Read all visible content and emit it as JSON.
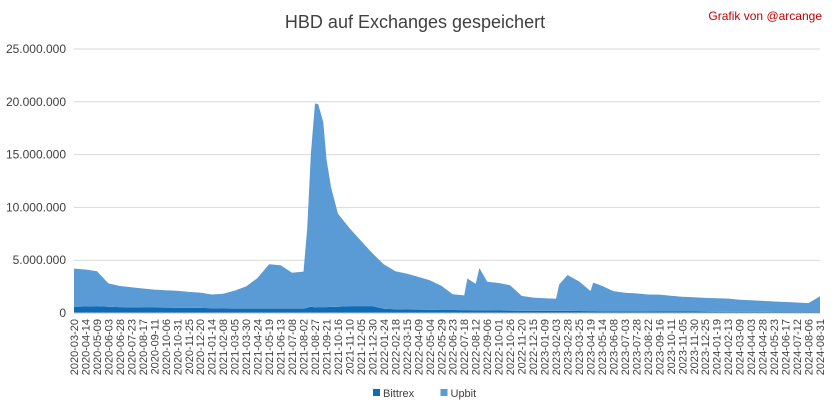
{
  "credit": "Grafik von @arcange",
  "chart_data": {
    "type": "area",
    "stacked": true,
    "title": "HBD auf Exchanges gespeichert",
    "xlabel": "",
    "ylabel": "",
    "ylim": [
      0,
      25000000
    ],
    "yticks": [
      0,
      5000000,
      10000000,
      15000000,
      20000000,
      25000000
    ],
    "ytick_labels": [
      "0",
      "5.000.000",
      "10.000.000",
      "15.000.000",
      "20.000.000",
      "25.000.000"
    ],
    "grid": "horizontal",
    "legend_position": "bottom",
    "x_tick_labels": [
      "2020-03-20",
      "2020-04-14",
      "2020-05-09",
      "2020-06-03",
      "2020-06-28",
      "2020-07-23",
      "2020-08-17",
      "2020-09-11",
      "2020-10-06",
      "2020-10-31",
      "2020-11-25",
      "2020-12-20",
      "2021-01-14",
      "2021-02-08",
      "2021-03-05",
      "2021-03-30",
      "2021-04-24",
      "2021-05-19",
      "2021-06-13",
      "2021-07-08",
      "2021-08-02",
      "2021-08-27",
      "2021-09-21",
      "2021-10-16",
      "2021-11-10",
      "2021-12-05",
      "2021-12-30",
      "2022-01-24",
      "2022-02-18",
      "2022-03-15",
      "2022-04-09",
      "2022-05-04",
      "2022-05-29",
      "2022-06-23",
      "2022-07-18",
      "2022-08-12",
      "2022-09-06",
      "2022-10-01",
      "2022-10-26",
      "2022-11-20",
      "2022-12-15",
      "2023-01-09",
      "2023-02-03",
      "2023-02-28",
      "2023-03-25",
      "2023-04-19",
      "2023-05-14",
      "2023-06-08",
      "2023-07-03",
      "2023-07-28",
      "2023-08-22",
      "2023-09-16",
      "2023-10-11",
      "2023-11-05",
      "2023-11-30",
      "2023-12-25",
      "2024-01-19",
      "2024-02-13",
      "2024-03-09",
      "2024-04-03",
      "2024-04-28",
      "2024-05-23",
      "2024-06-17",
      "2024-07-12",
      "2024-08-06",
      "2024-08-31"
    ],
    "x": [
      "2020-03-20",
      "2020-04-14",
      "2020-05-09",
      "2020-06-03",
      "2020-06-28",
      "2020-07-23",
      "2020-08-17",
      "2020-09-11",
      "2020-10-06",
      "2020-10-31",
      "2020-11-25",
      "2020-12-20",
      "2021-01-14",
      "2021-02-08",
      "2021-03-05",
      "2021-03-30",
      "2021-04-24",
      "2021-05-19",
      "2021-06-13",
      "2021-07-08",
      "2021-08-02",
      "2021-08-10",
      "2021-08-18",
      "2021-08-27",
      "2021-09-03",
      "2021-09-14",
      "2021-09-21",
      "2021-10-01",
      "2021-10-16",
      "2021-11-10",
      "2021-12-05",
      "2021-12-30",
      "2022-01-24",
      "2022-02-18",
      "2022-03-15",
      "2022-04-09",
      "2022-05-04",
      "2022-05-29",
      "2022-06-23",
      "2022-07-18",
      "2022-07-25",
      "2022-08-12",
      "2022-08-20",
      "2022-09-06",
      "2022-10-01",
      "2022-10-26",
      "2022-11-20",
      "2022-12-15",
      "2023-01-09",
      "2023-02-03",
      "2023-02-10",
      "2023-02-28",
      "2023-03-25",
      "2023-04-19",
      "2023-04-25",
      "2023-05-14",
      "2023-06-08",
      "2023-07-03",
      "2023-07-28",
      "2023-08-22",
      "2023-09-16",
      "2023-10-11",
      "2023-11-05",
      "2023-11-30",
      "2023-12-25",
      "2024-01-19",
      "2024-02-13",
      "2024-03-09",
      "2024-04-03",
      "2024-04-28",
      "2024-05-23",
      "2024-06-17",
      "2024-07-12",
      "2024-08-06",
      "2024-08-31"
    ],
    "series": [
      {
        "name": "Bittrex",
        "color": "#0e6bb7",
        "values": [
          600000,
          620000,
          650000,
          600000,
          560000,
          540000,
          520000,
          520000,
          510000,
          500000,
          500000,
          480000,
          450000,
          430000,
          420000,
          420000,
          420000,
          420000,
          420000,
          420000,
          420000,
          500000,
          600000,
          550000,
          560000,
          560000,
          560000,
          580000,
          600000,
          650000,
          650000,
          650000,
          400000,
          350000,
          330000,
          320000,
          300000,
          280000,
          280000,
          270000,
          270000,
          260000,
          260000,
          250000,
          240000,
          230000,
          220000,
          210000,
          200000,
          200000,
          200000,
          200000,
          190000,
          180000,
          180000,
          170000,
          170000,
          170000,
          160000,
          150000,
          140000,
          140000,
          140000,
          140000,
          130000,
          120000,
          110000,
          100000,
          100000,
          100000,
          90000,
          90000,
          90000,
          90000,
          90000
        ]
      },
      {
        "name": "Upbit",
        "color": "#5b9bd5",
        "values": [
          3600000,
          3500000,
          3300000,
          2200000,
          2000000,
          1900000,
          1800000,
          1700000,
          1650000,
          1600000,
          1500000,
          1450000,
          1300000,
          1400000,
          1700000,
          2100000,
          2900000,
          4200000,
          4100000,
          3400000,
          3500000,
          7500000,
          14500000,
          19300000,
          19200000,
          17500000,
          14000000,
          11300000,
          8800000,
          7400000,
          6200000,
          5000000,
          4200000,
          3600000,
          3400000,
          3100000,
          2800000,
          2300000,
          1500000,
          1400000,
          3000000,
          2500000,
          4000000,
          2700000,
          2600000,
          2400000,
          1400000,
          1250000,
          1200000,
          1150000,
          2500000,
          3400000,
          2800000,
          1900000,
          2700000,
          2400000,
          1900000,
          1750000,
          1700000,
          1600000,
          1600000,
          1500000,
          1400000,
          1350000,
          1300000,
          1280000,
          1250000,
          1150000,
          1100000,
          1050000,
          1000000,
          950000,
          900000,
          850000,
          1500000
        ]
      }
    ]
  }
}
